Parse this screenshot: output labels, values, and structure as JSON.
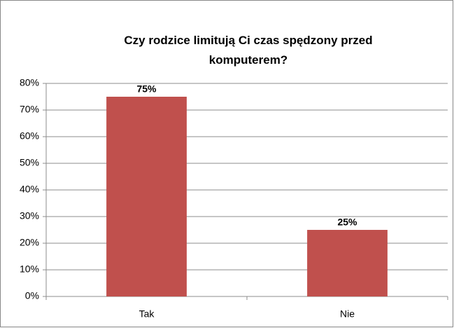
{
  "chart_data": {
    "type": "bar",
    "title": "Czy rodzice limitują Ci czas spędzony przed komputerem?",
    "categories": [
      "Tak",
      "Nie"
    ],
    "values": [
      75,
      25
    ],
    "value_labels": [
      "75%",
      "25%"
    ],
    "color": "#c0504d",
    "ylim": [
      0,
      80
    ],
    "yticks": [
      {
        "value": 0,
        "label": "0%"
      },
      {
        "value": 10,
        "label": "10%"
      },
      {
        "value": 20,
        "label": "20%"
      },
      {
        "value": 30,
        "label": "30%"
      },
      {
        "value": 40,
        "label": "40%"
      },
      {
        "value": 50,
        "label": "50%"
      },
      {
        "value": 60,
        "label": "60%"
      },
      {
        "value": 70,
        "label": "70%"
      },
      {
        "value": 80,
        "label": "80%"
      }
    ],
    "grid": true
  }
}
